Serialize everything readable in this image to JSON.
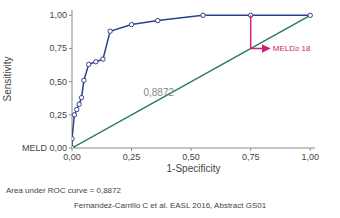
{
  "chart_data": {
    "type": "line",
    "x_label": "1-Specificity",
    "y_label": "Sensitivity",
    "series": [
      {
        "x": [
          0.0,
          0.0,
          0.01,
          0.02,
          0.03,
          0.04,
          0.05,
          0.07,
          0.1,
          0.13,
          0.16,
          0.25,
          0.36,
          0.55,
          0.75,
          1.0
        ],
        "values": [
          0.0,
          0.07,
          0.25,
          0.29,
          0.33,
          0.38,
          0.51,
          0.63,
          0.65,
          0.67,
          0.88,
          0.93,
          0.96,
          1.0,
          1.0,
          1.0
        ],
        "color": "#2e3f8a",
        "marker": "circle"
      },
      {
        "x": [
          0.0,
          1.0
        ],
        "values": [
          0.0,
          1.0
        ],
        "color": "#2d7a5a",
        "marker": "none"
      }
    ],
    "xlim": [
      0.0,
      1.02
    ],
    "ylim": [
      0.0,
      1.04
    ],
    "xticks": [
      {
        "value": 0.0,
        "label": "0,00"
      },
      {
        "value": 0.25,
        "label": "0,25"
      },
      {
        "value": 0.5,
        "label": "0,50"
      },
      {
        "value": 0.75,
        "label": "0,75"
      },
      {
        "value": 1.0,
        "label": "1,00"
      }
    ],
    "yticks": [
      {
        "value": 0.0,
        "label": "MELD 0,00"
      },
      {
        "value": 0.25,
        "label": "0,25"
      },
      {
        "value": 0.5,
        "label": "0,50"
      },
      {
        "value": 0.75,
        "label": "0,75"
      },
      {
        "value": 1.0,
        "label": "1,00"
      }
    ],
    "grid": false,
    "annotations": [
      {
        "text": "0,8872",
        "x": 0.3,
        "y": 0.42
      },
      {
        "text": "MELD≥ 18",
        "x": 0.75,
        "y_top": 1.0,
        "y": 0.75,
        "x_end": 0.83,
        "color": "#cc2277"
      }
    ],
    "caption": "Area under ROC curve = 0,8872",
    "source": "Fernandez-Carrillo C et al. EASL 2016, Abstract GS01"
  }
}
